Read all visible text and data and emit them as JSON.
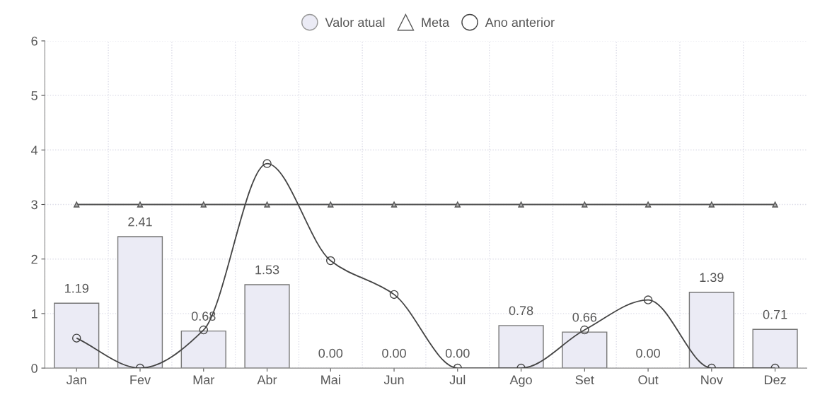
{
  "chart_data": {
    "type": "bar",
    "categories": [
      "Jan",
      "Fev",
      "Mar",
      "Abr",
      "Mai",
      "Jun",
      "Jul",
      "Ago",
      "Set",
      "Out",
      "Nov",
      "Dez"
    ],
    "series": [
      {
        "name": "Valor atual",
        "color": "#ebebf5",
        "values": [
          1.19,
          2.41,
          0.68,
          1.53,
          0.0,
          0.0,
          0.0,
          0.78,
          0.66,
          0.0,
          1.39,
          0.71
        ],
        "value_labels": [
          "1.19",
          "2.41",
          "0.68",
          "1.53",
          "0.00",
          "0.00",
          "0.00",
          "0.78",
          "0.66",
          "0.00",
          "1.39",
          "0.71"
        ]
      },
      {
        "name": "Meta",
        "type": "line",
        "color": "#555555",
        "marker": "triangle",
        "values": [
          3,
          3,
          3,
          3,
          3,
          3,
          3,
          3,
          3,
          3,
          3,
          3
        ]
      },
      {
        "name": "Ano anterior",
        "type": "line",
        "color": "#444444",
        "marker": "circle",
        "values": [
          0.55,
          0,
          0.7,
          3.75,
          1.97,
          1.35,
          0,
          0,
          0.7,
          1.25,
          0,
          0
        ]
      }
    ],
    "ylim": [
      0,
      6
    ],
    "yticks": [
      0,
      1,
      2,
      3,
      4,
      5,
      6
    ],
    "grid": true,
    "legend": "top"
  }
}
